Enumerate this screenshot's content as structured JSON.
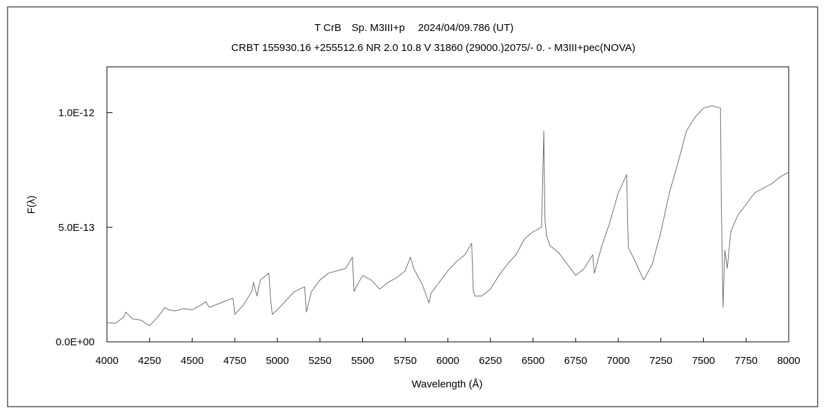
{
  "chart_data": {
    "type": "line",
    "title": "T CrB　Sp. M3III+p　 2024/04/09.786 (UT)",
    "subtitle": "CRBT 155930.16 +255512.6 NR 2.0 10.8 V 31860 (29000.)2075/-  0. - M3III+pec(NOVA)",
    "xlabel": "Wavelength (Å)",
    "ylabel": "F(λ)",
    "xlim": [
      4000,
      8000
    ],
    "ylim": [
      0,
      1.2e-12
    ],
    "xticks": [
      4000,
      4250,
      4500,
      4750,
      5000,
      5250,
      5500,
      5750,
      6000,
      6250,
      6500,
      6750,
      7000,
      7250,
      7500,
      7750,
      8000
    ],
    "xtick_labels": [
      "4000",
      "4250",
      "4500",
      "4750",
      "5000",
      "5250",
      "5500",
      "5750",
      "6000",
      "6250",
      "6500",
      "6750",
      "7000",
      "7250",
      "7500",
      "7750",
      "8000"
    ],
    "yticks": [
      0,
      5e-13,
      1e-12
    ],
    "ytick_labels": [
      "0.0E+00",
      "5.0E-13",
      "1.0E-12"
    ],
    "grid": false,
    "line_color": "#6e6e6e",
    "series": [
      {
        "x": [
          4000,
          4050,
          4100,
          4110,
          4150,
          4200,
          4250,
          4300,
          4340,
          4360,
          4400,
          4450,
          4500,
          4550,
          4580,
          4600,
          4650,
          4700,
          4740,
          4750,
          4800,
          4850,
          4860,
          4880,
          4900,
          4950,
          4960,
          4970,
          5000,
          5050,
          5100,
          5160,
          5170,
          5200,
          5250,
          5300,
          5350,
          5400,
          5440,
          5450,
          5470,
          5500,
          5550,
          5600,
          5650,
          5700,
          5750,
          5780,
          5800,
          5850,
          5890,
          5900,
          5950,
          6000,
          6050,
          6100,
          6140,
          6150,
          6160,
          6200,
          6250,
          6300,
          6350,
          6400,
          6450,
          6500,
          6550,
          6555,
          6563,
          6570,
          6580,
          6600,
          6650,
          6700,
          6750,
          6800,
          6850,
          6860,
          6900,
          6950,
          7000,
          7050,
          7055,
          7060,
          7100,
          7150,
          7200,
          7250,
          7300,
          7350,
          7400,
          7450,
          7500,
          7550,
          7600,
          7605,
          7615,
          7625,
          7640,
          7660,
          7700,
          7750,
          7800,
          7850,
          7900,
          7950,
          8000
        ],
        "y": [
          8.5e-14,
          8e-14,
          1.1e-13,
          1.3e-13,
          1e-13,
          9.5e-14,
          7e-14,
          1.1e-13,
          1.5e-13,
          1.4e-13,
          1.35e-13,
          1.45e-13,
          1.4e-13,
          1.6e-13,
          1.75e-13,
          1.5e-13,
          1.65e-13,
          1.8e-13,
          1.9e-13,
          1.2e-13,
          1.6e-13,
          2.2e-13,
          2.6e-13,
          2e-13,
          2.7e-13,
          3e-13,
          1.9e-13,
          1.2e-13,
          1.4e-13,
          1.8e-13,
          2.2e-13,
          2.4e-13,
          1.3e-13,
          2.2e-13,
          2.7e-13,
          3e-13,
          3.1e-13,
          3.2e-13,
          3.7e-13,
          2.2e-13,
          2.5e-13,
          2.9e-13,
          2.7e-13,
          2.3e-13,
          2.6e-13,
          2.8e-13,
          3.1e-13,
          3.7e-13,
          3.2e-13,
          2.5e-13,
          1.7e-13,
          2.1e-13,
          2.6e-13,
          3.1e-13,
          3.5e-13,
          3.8e-13,
          4.3e-13,
          2.2e-13,
          2e-13,
          2e-13,
          2.3e-13,
          2.9e-13,
          3.4e-13,
          3.8e-13,
          4.5e-13,
          4.8e-13,
          5e-13,
          6.5e-13,
          9.2e-13,
          5.3e-13,
          4.6e-13,
          4.2e-13,
          3.9e-13,
          3.4e-13,
          2.9e-13,
          3.2e-13,
          3.8e-13,
          3e-13,
          4.1e-13,
          5.2e-13,
          6.5e-13,
          7.3e-13,
          5.2e-13,
          4.1e-13,
          3.5e-13,
          2.7e-13,
          3.4e-13,
          4.8e-13,
          6.5e-13,
          7.8e-13,
          9.2e-13,
          9.8e-13,
          1.02e-12,
          1.03e-12,
          1.02e-12,
          6e-13,
          1.5e-13,
          4e-13,
          3.2e-13,
          4.8e-13,
          5.5e-13,
          6e-13,
          6.5e-13,
          6.7e-13,
          6.9e-13,
          7.2e-13,
          7.4e-13
        ]
      }
    ]
  }
}
